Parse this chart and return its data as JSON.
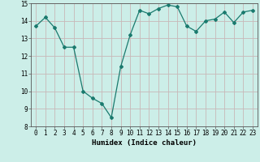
{
  "x": [
    0,
    1,
    2,
    3,
    4,
    5,
    6,
    7,
    8,
    9,
    10,
    11,
    12,
    13,
    14,
    15,
    16,
    17,
    18,
    19,
    20,
    21,
    22,
    23
  ],
  "y": [
    13.7,
    14.2,
    13.6,
    12.5,
    12.5,
    10.0,
    9.6,
    9.3,
    8.5,
    11.4,
    13.2,
    14.6,
    14.4,
    14.7,
    14.9,
    14.8,
    13.7,
    13.4,
    14.0,
    14.1,
    14.5,
    13.9,
    14.5,
    14.6
  ],
  "xlabel": "Humidex (Indice chaleur)",
  "ylim": [
    8,
    15
  ],
  "xlim": [
    -0.5,
    23.5
  ],
  "yticks": [
    8,
    9,
    10,
    11,
    12,
    13,
    14,
    15
  ],
  "xticks": [
    0,
    1,
    2,
    3,
    4,
    5,
    6,
    7,
    8,
    9,
    10,
    11,
    12,
    13,
    14,
    15,
    16,
    17,
    18,
    19,
    20,
    21,
    22,
    23
  ],
  "line_color": "#1a7a6e",
  "marker": "D",
  "marker_size": 2.0,
  "bg_color": "#cceee8",
  "grid_color": "#c8b8b8",
  "label_fontsize": 6.5,
  "tick_fontsize": 5.5
}
